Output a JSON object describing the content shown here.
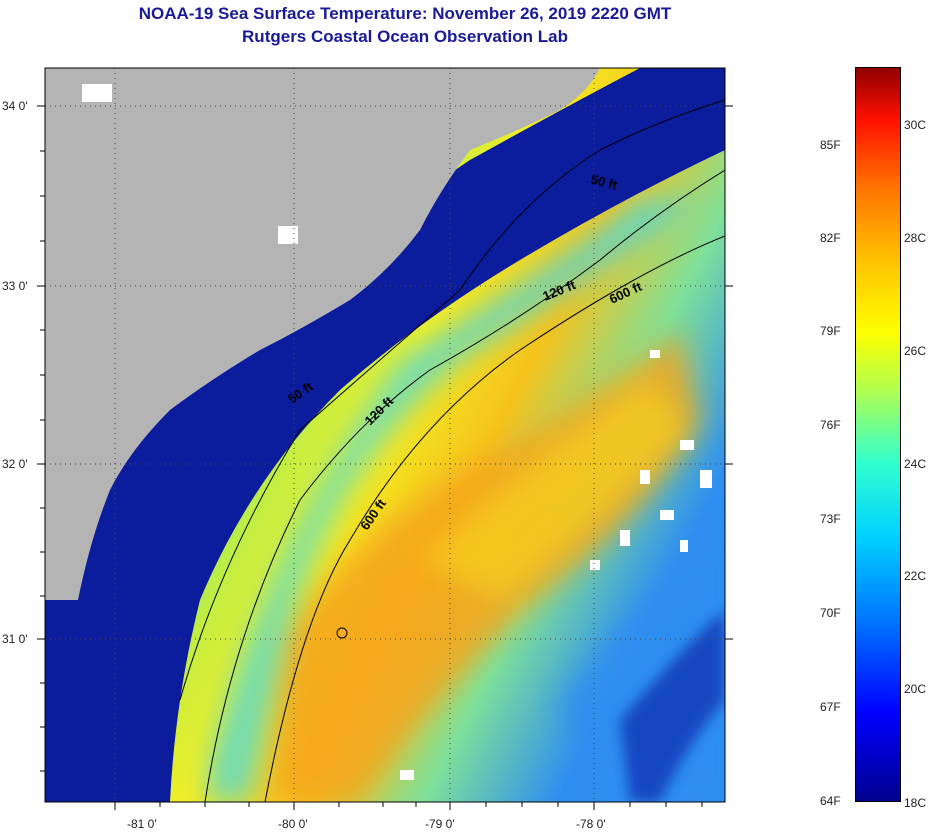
{
  "title": {
    "line1": "NOAA-19 Sea Surface Temperature:  November 26, 2019 2220 GMT",
    "line2": "Rutgers Coastal Ocean Observation Lab"
  },
  "map": {
    "lat_ticks": [
      "34 0'",
      "33 0'",
      "32 0'",
      "31 0'"
    ],
    "lon_ticks": [
      "-81 0'",
      "-80 0'",
      "-79 0'",
      "-78 0'"
    ],
    "contour_labels": [
      "50 ft",
      "50 ft",
      "120 ft",
      "120 ft",
      "600 ft",
      "600 ft"
    ],
    "colors": {
      "land": "#b4b4b4",
      "cold_water": "#0a1f9e",
      "warm_water": "#f2a21a",
      "cloud": "#ffffff"
    }
  },
  "colorbar": {
    "fahrenheit": [
      "85F",
      "82F",
      "79F",
      "76F",
      "73F",
      "70F",
      "67F",
      "64F"
    ],
    "celsius": [
      "30C",
      "28C",
      "26C",
      "24C",
      "22C",
      "20C",
      "18C"
    ],
    "range_c": [
      18,
      31
    ]
  }
}
